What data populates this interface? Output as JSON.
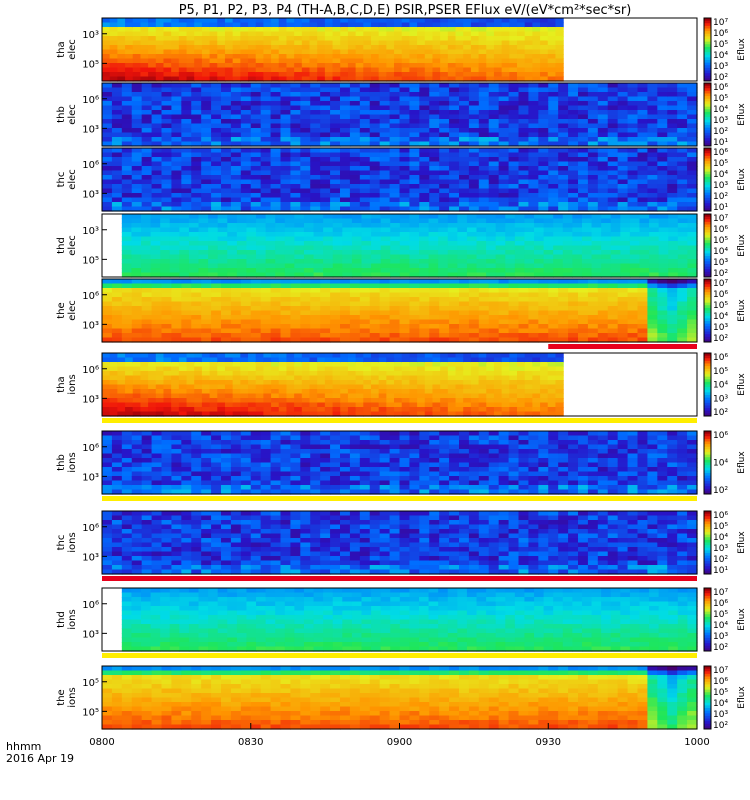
{
  "chart_data": {
    "type": "heatmap",
    "title": "P5, P1, P2, P3, P4 (TH-A,B,C,D,E) PSIR,PSER EFlux eV/(eV*cm²*sec*sr)",
    "x_ticks": [
      "0800",
      "0830",
      "0900",
      "0930",
      "1000"
    ],
    "x_range": [
      "08:00",
      "10:00"
    ],
    "footer": {
      "line1": "hhmm",
      "line2": "2016 Apr 19"
    },
    "colorbar_label": "Eflux",
    "panels": [
      {
        "label1": "tha",
        "label2": "elec",
        "y_ticks": [
          "10³",
          "10⁵"
        ],
        "cb_ticks": [
          "10⁷",
          "10⁶",
          "10⁵",
          "10⁴",
          "10³",
          "10²"
        ],
        "data_end": "09:33",
        "profile": "hot"
      },
      {
        "label1": "thb",
        "label2": "elec",
        "y_ticks": [
          "10⁶",
          "10³"
        ],
        "cb_ticks": [
          "10⁶",
          "10⁵",
          "10⁴",
          "10³",
          "10²",
          "10¹"
        ],
        "data_end": "10:00",
        "profile": "noise"
      },
      {
        "label1": "thc",
        "label2": "elec",
        "y_ticks": [
          "10⁶",
          "10³"
        ],
        "cb_ticks": [
          "10⁶",
          "10⁵",
          "10⁴",
          "10³",
          "10²",
          "10¹"
        ],
        "data_end": "10:00",
        "profile": "noise"
      },
      {
        "label1": "thd",
        "label2": "elec",
        "y_ticks": [
          "10³",
          "10⁵"
        ],
        "cb_ticks": [
          "10⁷",
          "10⁶",
          "10⁵",
          "10⁴",
          "10³",
          "10²"
        ],
        "data_start": "08:04",
        "profile": "cool"
      },
      {
        "label1": "the",
        "label2": "elec",
        "y_ticks": [
          "10⁶",
          "10³"
        ],
        "cb_ticks": [
          "10⁷",
          "10⁶",
          "10⁵",
          "10⁴",
          "10³",
          "10²"
        ],
        "data_end": "10:00",
        "profile": "warm"
      },
      {
        "label1": "tha",
        "label2": "ions",
        "y_ticks": [
          "10⁶",
          "10³"
        ],
        "cb_ticks": [
          "10⁶",
          "10⁵",
          "10⁴",
          "10³",
          "10²"
        ],
        "data_end": "09:33",
        "profile": "hot"
      },
      {
        "label1": "thb",
        "label2": "ions",
        "y_ticks": [
          "10⁶",
          "10³"
        ],
        "cb_ticks": [
          "10⁶",
          "10⁴",
          "10²"
        ],
        "data_end": "10:00",
        "profile": "noise"
      },
      {
        "label1": "thc",
        "label2": "ions",
        "y_ticks": [
          "10⁶",
          "10³"
        ],
        "cb_ticks": [
          "10⁶",
          "10⁵",
          "10⁴",
          "10³",
          "10²",
          "10¹"
        ],
        "data_end": "10:00",
        "profile": "noise"
      },
      {
        "label1": "thd",
        "label2": "ions",
        "y_ticks": [
          "10⁶",
          "10³"
        ],
        "cb_ticks": [
          "10⁷",
          "10⁶",
          "10⁵",
          "10⁴",
          "10³",
          "10²"
        ],
        "data_start": "08:04",
        "profile": "cool"
      },
      {
        "label1": "the",
        "label2": "ions",
        "y_ticks": [
          "10⁵",
          "10⁵"
        ],
        "cb_ticks": [
          "10⁷",
          "10⁶",
          "10⁵",
          "10⁴",
          "10³",
          "10²"
        ],
        "data_end": "10:00",
        "profile": "warm"
      }
    ],
    "indicator_bars": [
      {
        "after_panel": 4,
        "color": "#e8001c",
        "from": "09:30",
        "to": "10:00"
      },
      {
        "after_panel": 5,
        "color": "#ffee00",
        "from": "08:00",
        "to": "10:00"
      },
      {
        "after_panel": 6,
        "color": "#ffee00",
        "from": "08:00",
        "to": "10:00"
      },
      {
        "after_panel": 7,
        "color": "#e8001c",
        "from": "08:00",
        "to": "10:00"
      },
      {
        "after_panel": 8,
        "color": "#ffee00",
        "from": "08:00",
        "to": "10:00"
      }
    ],
    "colors": {
      "red": "#e8001c",
      "yellow": "#ffee00"
    }
  }
}
